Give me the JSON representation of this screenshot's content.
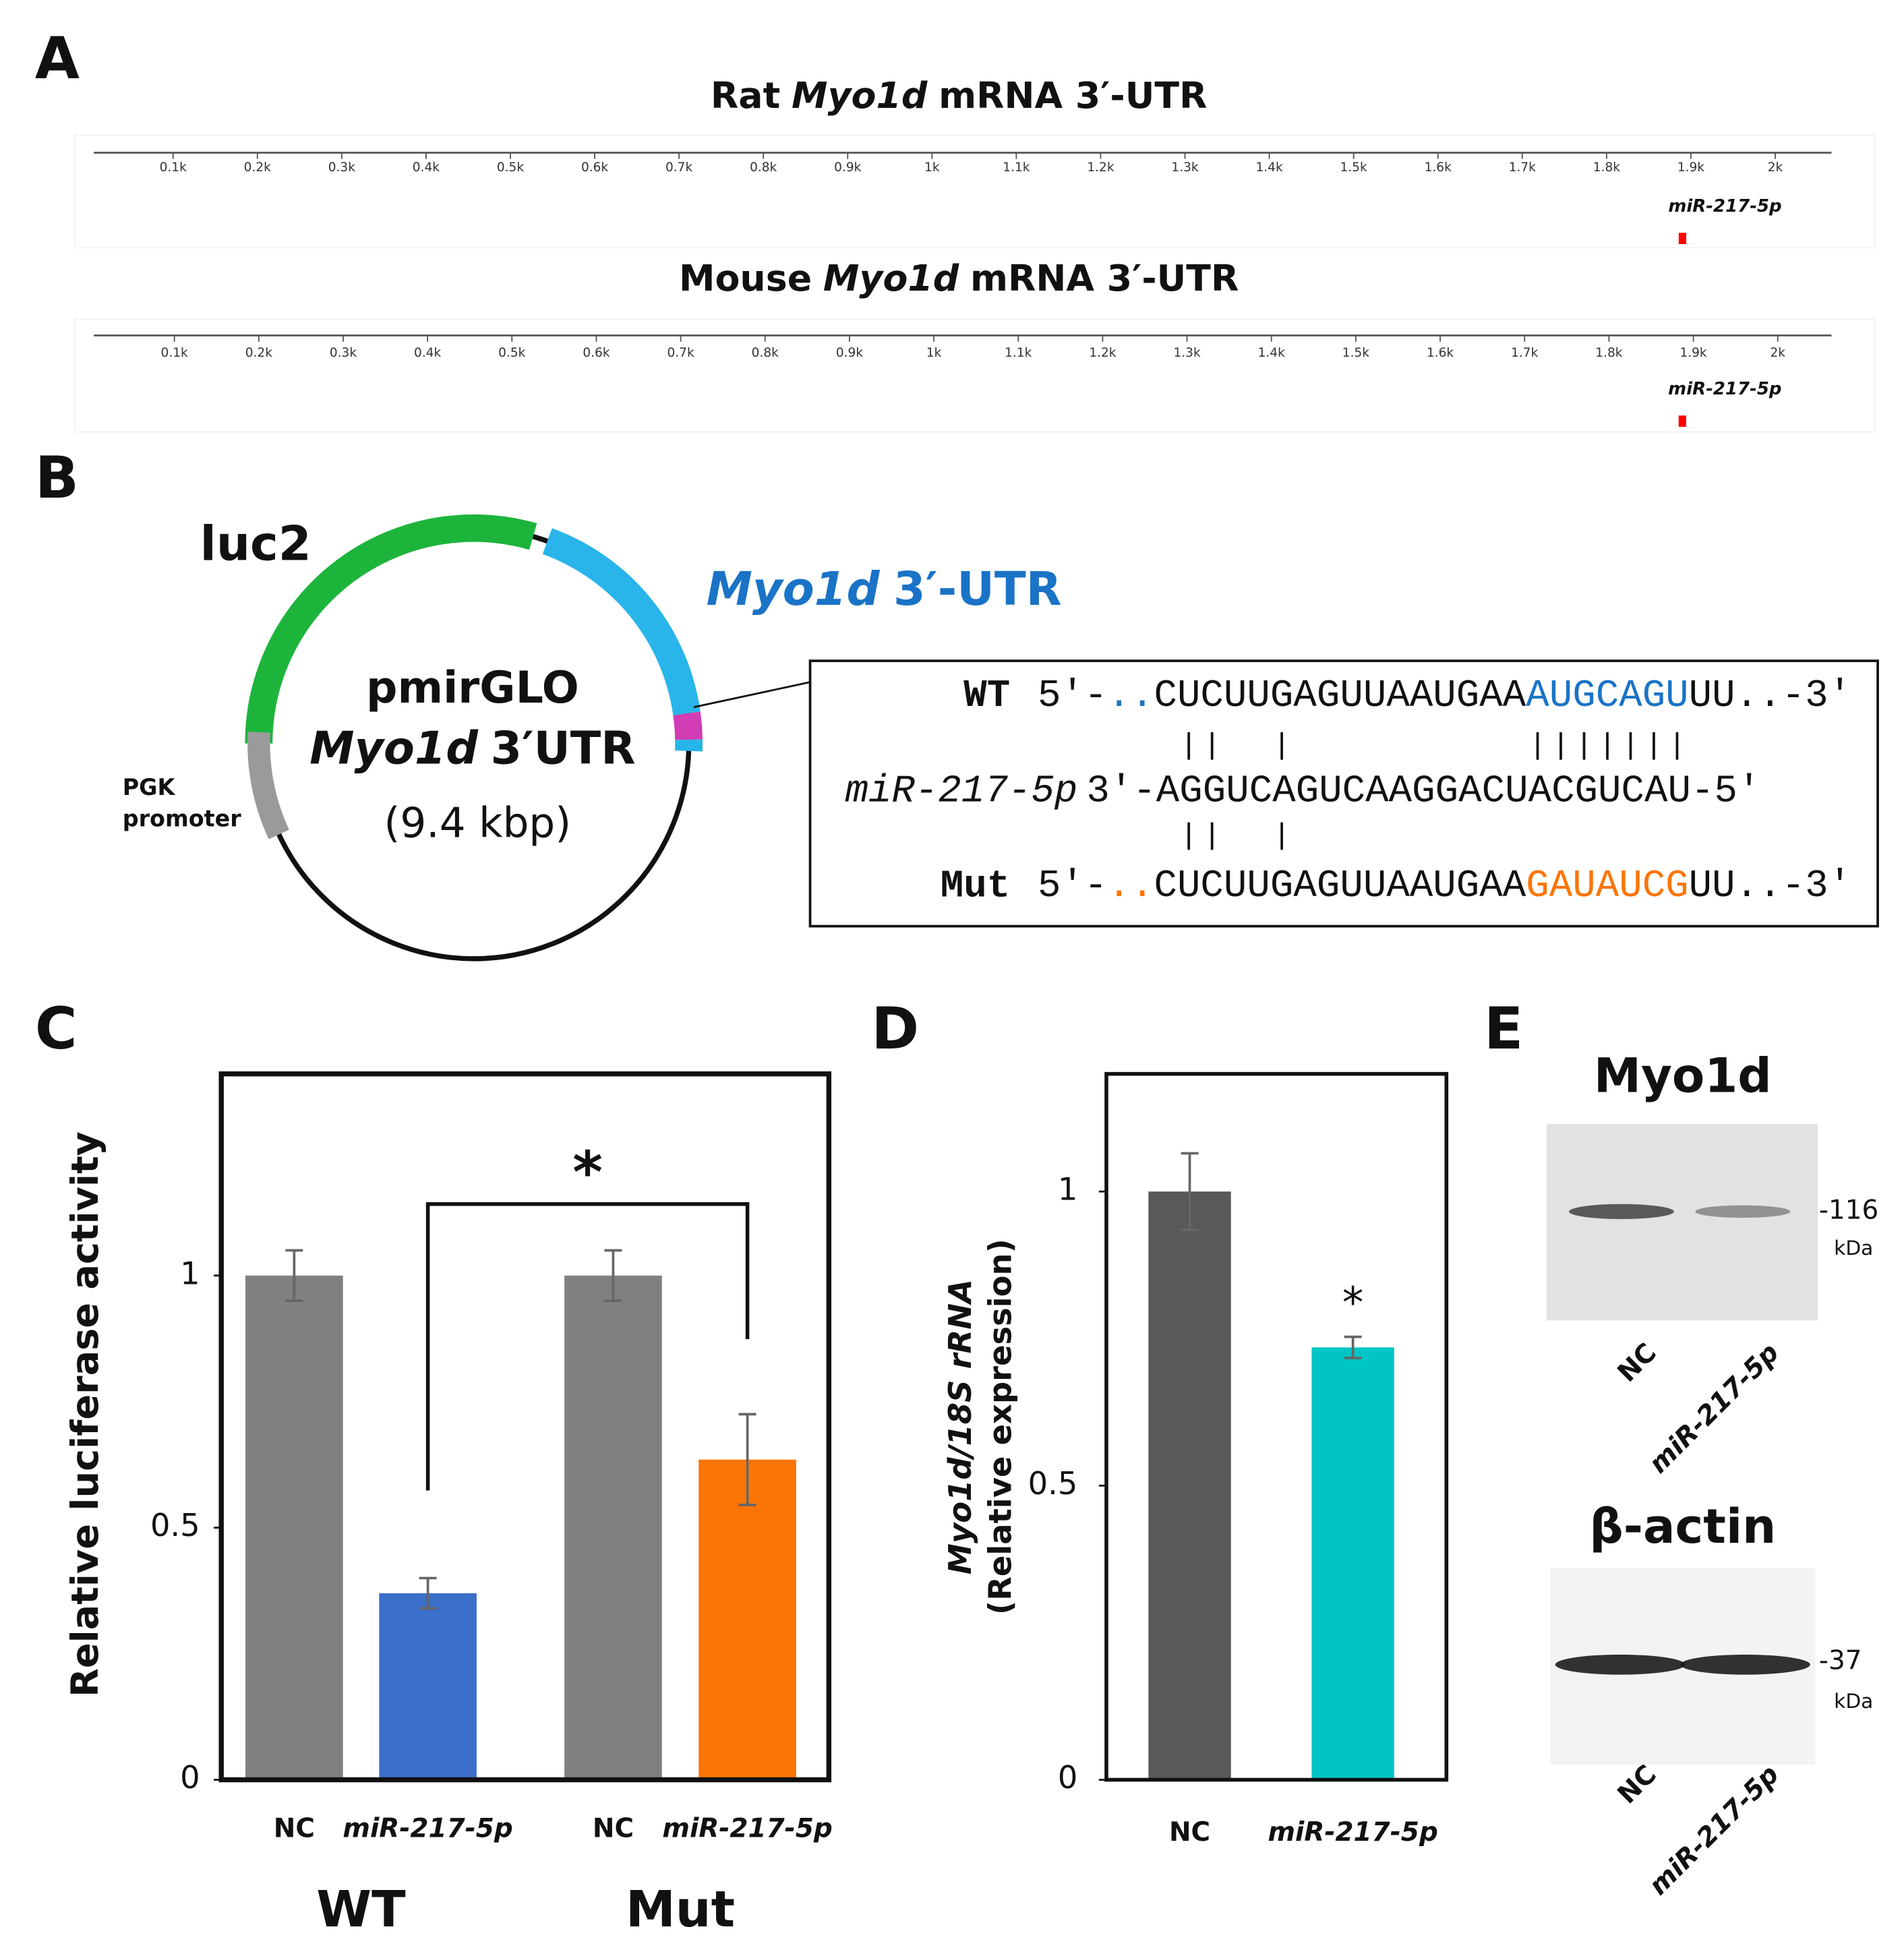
{
  "panel_a": {
    "label": "A",
    "tracks": [
      {
        "title": [
          "Rat",
          "Myo1d",
          "mRNA 3′-UTR"
        ],
        "ticks": [
          {
            "value": 100,
            "label": "0.1k"
          },
          {
            "value": 200,
            "label": "0.2k"
          },
          {
            "value": 300,
            "label": "0.3k"
          },
          {
            "value": 400,
            "label": "0.4k"
          },
          {
            "value": 500,
            "label": "0.5k"
          },
          {
            "value": 600,
            "label": "0.6k"
          },
          {
            "value": 700,
            "label": "0.7k"
          },
          {
            "value": 800,
            "label": "0.8k"
          },
          {
            "value": 900,
            "label": "0.9k"
          },
          {
            "value": 1000,
            "label": "1k"
          },
          {
            "value": 1100,
            "label": "1.1k"
          },
          {
            "value": 1200,
            "label": "1.2k"
          },
          {
            "value": 1300,
            "label": "1.3k"
          },
          {
            "value": 1400,
            "label": "1.4k"
          },
          {
            "value": 1500,
            "label": "1.5k"
          },
          {
            "value": 1600,
            "label": "1.6k"
          },
          {
            "value": 1700,
            "label": "1.7k"
          },
          {
            "value": 1800,
            "label": "1.8k"
          },
          {
            "value": 1900,
            "label": "1.9k"
          },
          {
            "value": 2000,
            "label": "2k"
          }
        ],
        "site_label": "miR-217-5p",
        "site": 1890
      },
      {
        "title": [
          "Mouse",
          "Myo1d",
          "mRNA 3′-UTR"
        ],
        "ticks": [
          {
            "value": 100,
            "label": "0.1k"
          },
          {
            "value": 200,
            "label": "0.2k"
          },
          {
            "value": 300,
            "label": "0.3k"
          },
          {
            "value": 400,
            "label": "0.4k"
          },
          {
            "value": 500,
            "label": "0.5k"
          },
          {
            "value": 600,
            "label": "0.6k"
          },
          {
            "value": 700,
            "label": "0.7k"
          },
          {
            "value": 800,
            "label": "0.8k"
          },
          {
            "value": 900,
            "label": "0.9k"
          },
          {
            "value": 1000,
            "label": "1k"
          },
          {
            "value": 1100,
            "label": "1.1k"
          },
          {
            "value": 1200,
            "label": "1.2k"
          },
          {
            "value": 1300,
            "label": "1.3k"
          },
          {
            "value": 1400,
            "label": "1.4k"
          },
          {
            "value": 1500,
            "label": "1.5k"
          },
          {
            "value": 1600,
            "label": "1.6k"
          },
          {
            "value": 1700,
            "label": "1.7k"
          },
          {
            "value": 1800,
            "label": "1.8k"
          },
          {
            "value": 1900,
            "label": "1.9k"
          },
          {
            "value": 2000,
            "label": "2k"
          }
        ],
        "site_label": "miR-217-5p",
        "site": 1887
      }
    ]
  },
  "panel_b": {
    "label": "B",
    "luc": "luc2",
    "utr": [
      "Myo1d",
      "3′-UTR"
    ],
    "plasmid": {
      "name": "pmirGLO",
      "insert": [
        "Myo1d",
        "3′UTR"
      ],
      "size": "(9.4 kbp)"
    },
    "promoter": [
      "PGK",
      "promoter"
    ],
    "alignment": {
      "wt": {
        "name": "WT",
        "prefix": "5′-",
        "dots": "..",
        "seq": "CUCUUGAGUUAAUGAA",
        "site": "AUGCAGU",
        "suffix": "UU..-3′"
      },
      "mirna": {
        "name": "miR-217-5p",
        "seq": "3′-AGGUCAGUCAAGGACUACGUCAU-5′"
      },
      "mut": {
        "name": "Mut",
        "prefix": "5′-",
        "dots": "..",
        "seq": "CUCUUGAGUUAAUGAA",
        "site": "GAUAUCG",
        "suffix": "UU..-3′"
      }
    }
  },
  "chart_data": [
    {
      "panel": "C",
      "type": "bar",
      "categories": [
        "NC",
        "miR-217-5p",
        "NC",
        "miR-217-5p"
      ],
      "values": [
        1,
        0.37,
        1,
        0.635
      ],
      "errors": [
        0.05,
        0.03,
        0.05,
        0.09
      ],
      "colors": [
        "#808080",
        "#3b6fca",
        "#808080",
        "#fb7506"
      ],
      "groups": [
        {
          "name": "WT",
          "color": "#3b6fca"
        },
        {
          "name": "Mut",
          "color": "#fb7506"
        }
      ],
      "ylabel": [
        "Relative luciferase activity"
      ],
      "ylim": [
        0,
        1.4
      ],
      "yticks": [
        0,
        0.5,
        1
      ],
      "annotation": "*"
    },
    {
      "panel": "D",
      "type": "bar",
      "categories": [
        "NC",
        "miR-217-5p"
      ],
      "values": [
        1,
        0.735
      ],
      "errors": [
        0.065,
        0.018
      ],
      "colors": [
        "#595959",
        "#00c5c5"
      ],
      "ylabel": [
        "Myo1d/18S rRNA",
        "(Relative expression)"
      ],
      "ylim": [
        0,
        1.2
      ],
      "yticks": [
        0,
        0.5,
        1
      ],
      "annotation": "*"
    }
  ],
  "panel_e": {
    "label": "E",
    "blots": [
      {
        "title": "Myo1d",
        "marker": "-116",
        "unit": "kDa",
        "lanes": [
          "NC",
          "miR-217-5p"
        ]
      },
      {
        "title": "β-actin",
        "marker": "-37",
        "unit": "kDa",
        "lanes": [
          "NC",
          "miR-217-5p"
        ]
      }
    ]
  }
}
